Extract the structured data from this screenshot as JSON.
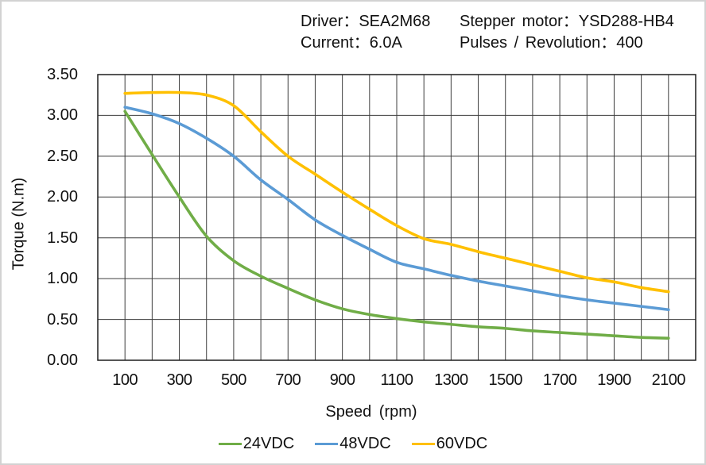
{
  "header": {
    "row1": [
      {
        "text": "Driver：SEA2M68"
      },
      {
        "text": "Stepper motor：YSD288-HB4"
      }
    ],
    "row2": [
      {
        "text": "Current：6.0A"
      },
      {
        "text": "Pulses / Revolution：400"
      }
    ]
  },
  "chart_data": {
    "type": "line",
    "title": "",
    "xlabel": "Speed (rpm)",
    "ylabel": "Torque (N.m)",
    "xlim": [
      0,
      2200
    ],
    "ylim": [
      0,
      3.5
    ],
    "grid": true,
    "x_gridline_step": 100,
    "y_gridline_step": 0.5,
    "gridline_color": "#3d3d3d",
    "frame_color": "#1f1f1f",
    "legend_position": "bottom",
    "x_ticks": [
      {
        "label": "100",
        "value": 100
      },
      {
        "label": "300",
        "value": 300
      },
      {
        "label": "500",
        "value": 500
      },
      {
        "label": "700",
        "value": 700
      },
      {
        "label": "900",
        "value": 900
      },
      {
        "label": "1100",
        "value": 1100
      },
      {
        "label": "1300",
        "value": 1300
      },
      {
        "label": "1500",
        "value": 1500
      },
      {
        "label": "1700",
        "value": 1700
      },
      {
        "label": "1900",
        "value": 1900
      },
      {
        "label": "2100",
        "value": 2100
      }
    ],
    "y_ticks": [
      {
        "label": "0.00",
        "value": 0
      },
      {
        "label": "0.50",
        "value": 0.5
      },
      {
        "label": "1.00",
        "value": 1
      },
      {
        "label": "1.50",
        "value": 1.5
      },
      {
        "label": "2.00",
        "value": 2
      },
      {
        "label": "2.50",
        "value": 2.5
      },
      {
        "label": "3.00",
        "value": 3
      },
      {
        "label": "3.50",
        "value": 3.5
      }
    ],
    "x": [
      100,
      200,
      300,
      400,
      500,
      600,
      700,
      800,
      900,
      1000,
      1100,
      1200,
      1300,
      1400,
      1500,
      1600,
      1700,
      1800,
      1900,
      2000,
      2100
    ],
    "series": [
      {
        "name": "24VDC",
        "color": "#70AD47",
        "values": [
          3.05,
          2.52,
          2.0,
          1.52,
          1.22,
          1.03,
          0.88,
          0.74,
          0.63,
          0.56,
          0.51,
          0.47,
          0.44,
          0.41,
          0.39,
          0.36,
          0.34,
          0.32,
          0.3,
          0.28,
          0.27
        ]
      },
      {
        "name": "48VDC",
        "color": "#5B9BD5",
        "values": [
          3.1,
          3.02,
          2.9,
          2.72,
          2.5,
          2.21,
          1.97,
          1.72,
          1.53,
          1.36,
          1.2,
          1.12,
          1.04,
          0.97,
          0.91,
          0.85,
          0.79,
          0.74,
          0.7,
          0.66,
          0.62
        ]
      },
      {
        "name": "60VDC",
        "color": "#FFC000",
        "values": [
          3.27,
          3.28,
          3.28,
          3.25,
          3.12,
          2.8,
          2.5,
          2.28,
          2.06,
          1.85,
          1.65,
          1.49,
          1.42,
          1.33,
          1.25,
          1.17,
          1.09,
          1.01,
          0.96,
          0.89,
          0.84
        ]
      }
    ]
  }
}
